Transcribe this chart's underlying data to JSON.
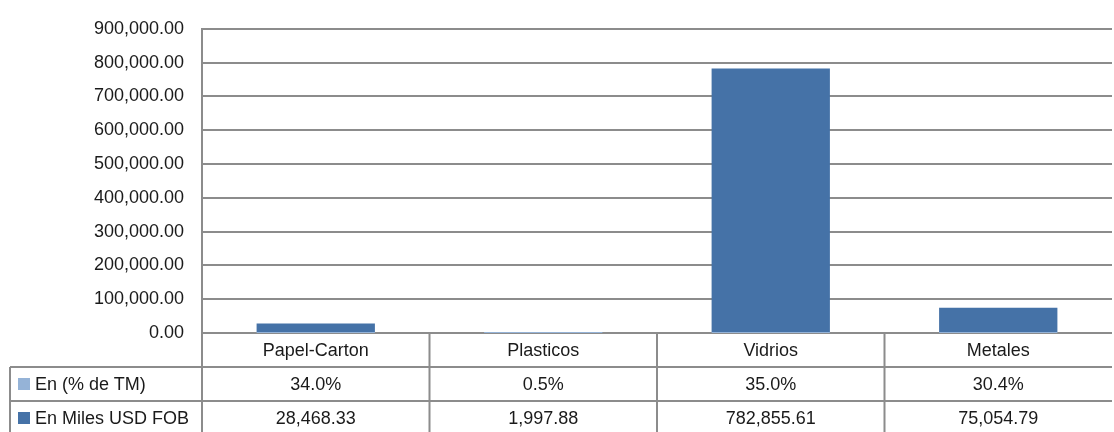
{
  "chart_data": {
    "type": "bar",
    "categories": [
      "Papel-Carton",
      "Plasticos",
      "Vidrios",
      "Metales"
    ],
    "series": [
      {
        "name": "En (% de TM)",
        "color": "#95b3d7",
        "values": [
          34.0,
          0.5,
          35.0,
          30.4
        ],
        "value_labels": [
          "34.0%",
          "0.5%",
          "35.0%",
          "30.4%"
        ]
      },
      {
        "name": "En Miles USD FOB",
        "color": "#4572a7",
        "values": [
          28468.33,
          1997.88,
          782855.61,
          75054.79
        ],
        "value_labels": [
          "28,468.33",
          "1,997.88",
          "782,855.61",
          "75,054.79"
        ]
      }
    ],
    "ylim": [
      0,
      900000
    ],
    "yticks": [
      {
        "value": 0,
        "label": "0.00"
      },
      {
        "value": 100000,
        "label": "100,000.00"
      },
      {
        "value": 200000,
        "label": "200,000.00"
      },
      {
        "value": 300000,
        "label": "300,000.00"
      },
      {
        "value": 400000,
        "label": "400,000.00"
      },
      {
        "value": 500000,
        "label": "500,000.00"
      },
      {
        "value": 600000,
        "label": "600,000.00"
      },
      {
        "value": 700000,
        "label": "700,000.00"
      },
      {
        "value": 800000,
        "label": "800,000.00"
      },
      {
        "value": 900000,
        "label": "900,000.00"
      }
    ],
    "grid": "y",
    "legend": "bottom left"
  }
}
